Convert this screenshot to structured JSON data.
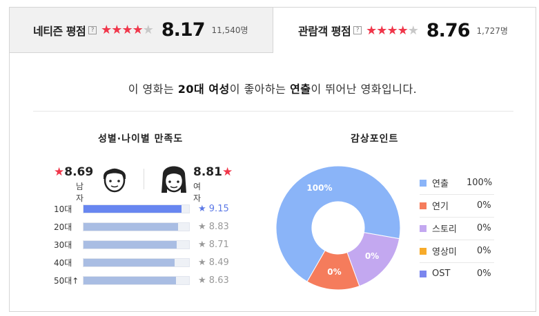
{
  "tabs": {
    "netizen": {
      "label": "네티즌 평점",
      "help": "?",
      "stars_on": "★★★★",
      "stars_off": "★",
      "score": "8.17",
      "count": "11,540명"
    },
    "audience": {
      "label": "관람객 평점",
      "help": "?",
      "stars_on": "★★★★",
      "stars_off": "★",
      "score": "8.76",
      "count": "1,727명"
    }
  },
  "summary": {
    "prefix": "이 영화는 ",
    "demo": "20대 여성",
    "mid": "이 좋아하는 ",
    "point": "연출",
    "suffix": "이 뛰어난 영화입니다."
  },
  "satisfaction": {
    "title": "성별·나이별 만족도",
    "male": {
      "score": "8.69",
      "label": "남자",
      "star": "★"
    },
    "female": {
      "score": "8.81",
      "label": "여자",
      "star": "★"
    },
    "ages": [
      {
        "label": "10대",
        "value": "9.15",
        "fill": 0.915,
        "highlight": true
      },
      {
        "label": "20대",
        "value": "8.83",
        "fill": 0.883,
        "highlight": false
      },
      {
        "label": "30대",
        "value": "8.71",
        "fill": 0.871,
        "highlight": false
      },
      {
        "label": "40대",
        "value": "8.49",
        "fill": 0.849,
        "highlight": false
      },
      {
        "label": "50대↑",
        "value": "8.63",
        "fill": 0.863,
        "highlight": false
      }
    ]
  },
  "viewing_points": {
    "title": "감상포인트",
    "colors": {
      "연출": "#8ab4f8",
      "연기": "#f57c5c",
      "스토리": "#c3a8f0",
      "영상미": "#f7ab2a",
      "OST": "#7b86ee"
    }
  },
  "chart_data": {
    "type": "pie",
    "title": "감상포인트",
    "categories": [
      "연출",
      "연기",
      "스토리",
      "영상미",
      "OST"
    ],
    "values": [
      100,
      0,
      0,
      0,
      0
    ],
    "slice_labels": [
      "100%",
      "0%",
      "0%",
      "0%",
      "0%"
    ],
    "legend": [
      "연출",
      "연기",
      "스토리",
      "영상미",
      "OST"
    ],
    "legend_values": [
      "100%",
      "0%",
      "0%",
      "0%",
      "0%"
    ],
    "legend_position": "right"
  }
}
